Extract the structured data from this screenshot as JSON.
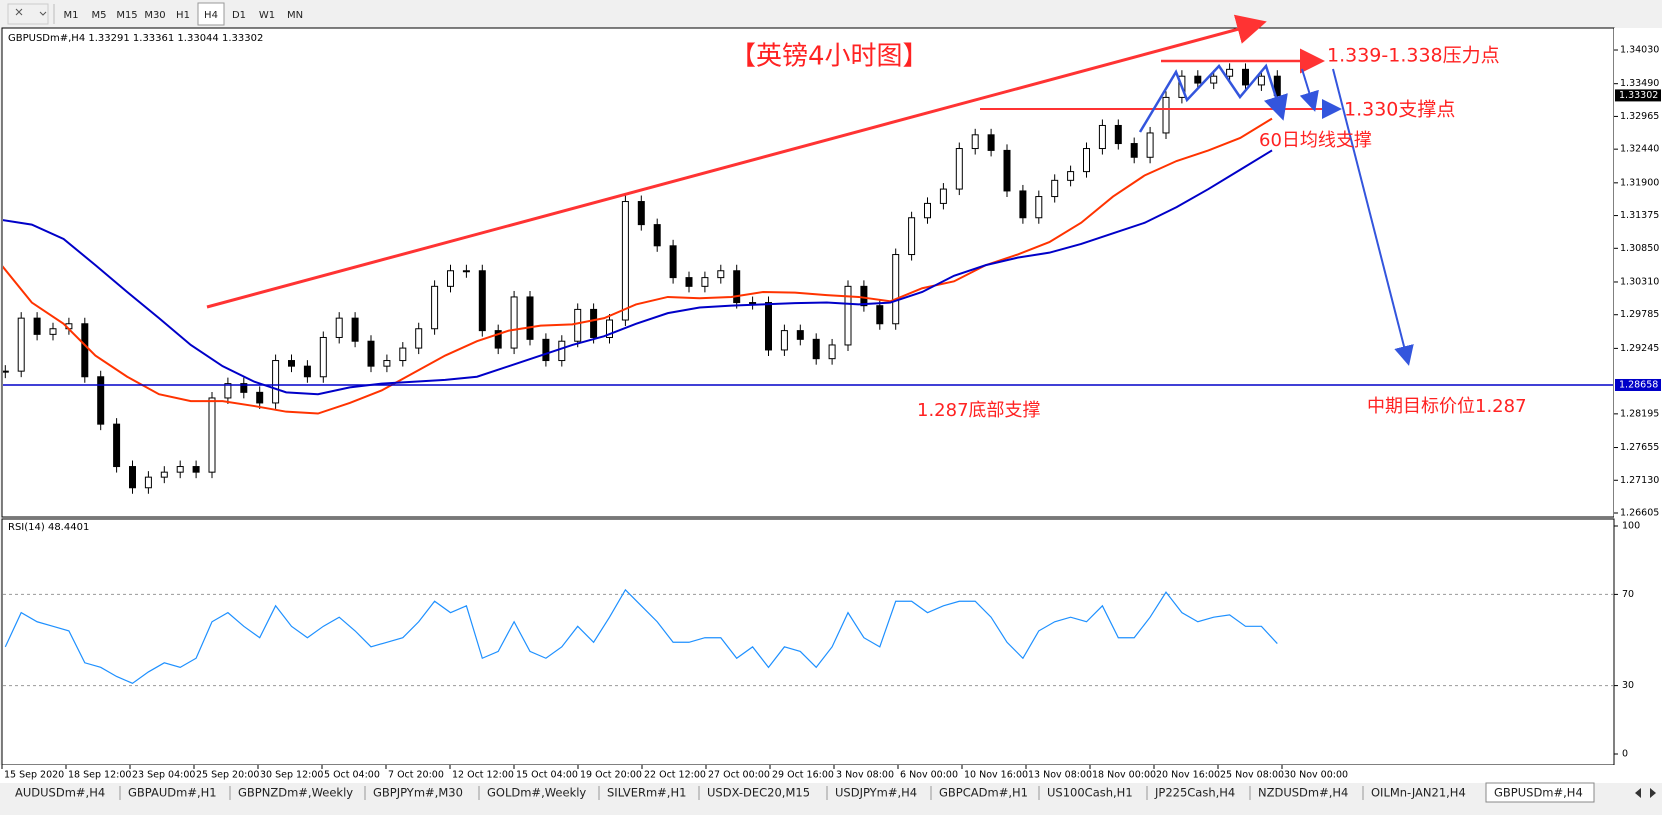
{
  "toolbar": {
    "timeframes": [
      "M1",
      "M5",
      "M15",
      "M30",
      "H1",
      "H4",
      "D1",
      "W1",
      "MN"
    ],
    "active": 5
  },
  "chart_data": {
    "type": "candlestick",
    "header": "GBPUSDm#,H4  1.33291 1.33361 1.33044 1.33302",
    "title": "【英镑4小时图】",
    "closes": [
      1.2888,
      1.2973,
      1.2947,
      1.2956,
      1.2964,
      1.2879,
      1.2803,
      1.2735,
      1.2701,
      1.2718,
      1.2726,
      1.2735,
      1.2726,
      1.2845,
      1.2868,
      1.2854,
      1.2837,
      1.2905,
      1.2896,
      1.2879,
      1.2942,
      1.2973,
      1.2936,
      1.2896,
      1.2905,
      1.2925,
      1.2956,
      1.3024,
      1.3049,
      1.3049,
      1.2953,
      1.2925,
      1.3007,
      1.2939,
      1.2905,
      1.2936,
      1.2987,
      1.2942,
      1.297,
      1.316,
      1.3123,
      1.3089,
      1.3038,
      1.3024,
      1.3038,
      1.3049,
      1.2998,
      1.2998,
      1.2922,
      1.2953,
      1.2939,
      1.2908,
      1.293,
      1.3024,
      1.2993,
      1.2964,
      1.3075,
      1.3134,
      1.3157,
      1.318,
      1.3245,
      1.3267,
      1.3242,
      1.3177,
      1.3134,
      1.3168,
      1.3194,
      1.3208,
      1.3245,
      1.3282,
      1.3253,
      1.3231,
      1.327,
      1.3327,
      1.3361,
      1.335,
      1.3361,
      1.3372,
      1.3347,
      1.3361,
      1.333
    ],
    "moving_averages": [
      {
        "color": "#ff3300",
        "values": [
          1.3061,
          1.2998,
          1.2964,
          1.2913,
          1.2879,
          1.2851,
          1.284,
          1.284,
          1.2832,
          1.2823,
          1.282,
          1.2837,
          1.2857,
          1.2885,
          1.2913,
          1.2936,
          1.2953,
          1.2961,
          1.2963,
          1.2973,
          1.2995,
          1.3007,
          1.3005,
          1.3007,
          1.3015,
          1.3014,
          1.301,
          1.3007,
          1.3,
          1.3021,
          1.3032,
          1.3058,
          1.3075,
          1.3095,
          1.3126,
          1.3168,
          1.3202,
          1.3225,
          1.3242,
          1.3262,
          1.3293
        ]
      },
      {
        "color": "#0000c8",
        "values": [
          1.3131,
          1.3123,
          1.31,
          1.3058,
          1.3015,
          1.2973,
          1.293,
          1.2896,
          1.2871,
          1.2854,
          1.2851,
          1.2862,
          1.2868,
          1.2871,
          1.2874,
          1.2879,
          1.2896,
          1.2913,
          1.293,
          1.2944,
          1.2964,
          1.2981,
          1.299,
          1.2993,
          1.2995,
          1.2997,
          1.2998,
          1.2995,
          1.2998,
          1.3015,
          1.3041,
          1.3058,
          1.307,
          1.3078,
          1.3092,
          1.3109,
          1.3126,
          1.3151,
          1.318,
          1.3211,
          1.3242
        ]
      }
    ],
    "ylim": [
      1.26557,
      1.34367
    ],
    "yticks": [
      {
        "value": 1.3403,
        "label": "1.34030"
      },
      {
        "value": 1.3349,
        "label": "1.33490"
      },
      {
        "value": 1.32965,
        "label": "1.32965"
      },
      {
        "value": 1.3244,
        "label": "1.32440"
      },
      {
        "value": 1.319,
        "label": "1.31900"
      },
      {
        "value": 1.31375,
        "label": "1.31375"
      },
      {
        "value": 1.3085,
        "label": "1.30850"
      },
      {
        "value": 1.3031,
        "label": "1.30310"
      },
      {
        "value": 1.29785,
        "label": "1.29785"
      },
      {
        "value": 1.29245,
        "label": "1.29245"
      },
      {
        "value": 1.28195,
        "label": "1.28195"
      },
      {
        "value": 1.27655,
        "label": "1.27655"
      },
      {
        "value": 1.2713,
        "label": "1.27130"
      },
      {
        "value": 1.26605,
        "label": "1.26605"
      }
    ],
    "price_labels": [
      {
        "value": 1.33302,
        "label": "1.33302",
        "color": "#000000"
      },
      {
        "value": 1.28658,
        "label": "1.28658",
        "color": "#0000c8"
      }
    ],
    "annotations": [
      "1.339-1.338压力点",
      "1.330支撑点",
      "60日均线支撑",
      "1.287底部支撑",
      "中期目标价位1.287"
    ],
    "x_labels": [
      "15 Sep 2020",
      "18 Sep 12:00",
      "23 Sep 04:00",
      "25 Sep 20:00",
      "30 Sep 12:00",
      "5 Oct 04:00",
      "7 Oct 20:00",
      "12 Oct 12:00",
      "15 Oct 04:00",
      "19 Oct 20:00",
      "22 Oct 12:00",
      "27 Oct 00:00",
      "29 Oct 16:00",
      "3 Nov 08:00",
      "6 Nov 00:00",
      "10 Nov 16:00",
      "13 Nov 08:00",
      "18 Nov 00:00",
      "20 Nov 16:00",
      "25 Nov 08:00",
      "30 Nov 00:00"
    ]
  },
  "rsi": {
    "label": "RSI(14) 48.4401",
    "color": "#1e90ff",
    "values": [
      47,
      62,
      58,
      56,
      54,
      40,
      38,
      34,
      31,
      36,
      40,
      38,
      42,
      58,
      62,
      56,
      51,
      65,
      56,
      51,
      56,
      60,
      54,
      47,
      49,
      51,
      58,
      67,
      62,
      65,
      42,
      45,
      58,
      45,
      42,
      47,
      56,
      49,
      60,
      72,
      65,
      58,
      49,
      49,
      51,
      51,
      42,
      47,
      38,
      47,
      45,
      38,
      47,
      62,
      51,
      47,
      67,
      67,
      62,
      65,
      67,
      67,
      60,
      49,
      42,
      54,
      58,
      60,
      58,
      65,
      51,
      51,
      60,
      71,
      62,
      58,
      60,
      61,
      56,
      56,
      48.4401
    ],
    "ylim": [
      0,
      100
    ],
    "yticks": [
      100,
      70,
      30,
      0
    ],
    "levels": [
      70,
      30
    ]
  },
  "tabs": [
    "AUDUSDm#,H4",
    "GBPAUDm#,H1",
    "GBPNZDm#,Weekly",
    "GBPJPYm#,M30",
    "GOLDm#,Weekly",
    "SILVERm#,H1",
    "USDX-DEC20,M15",
    "USDJPYm#,H4",
    "GBPCADm#,H1",
    "US100Cash,H1",
    "JP225Cash,H4",
    "NZDUSDm#,H4",
    "OILMn-JAN21,H4",
    "GBPUSDm#,H4"
  ],
  "active_tab": 13
}
